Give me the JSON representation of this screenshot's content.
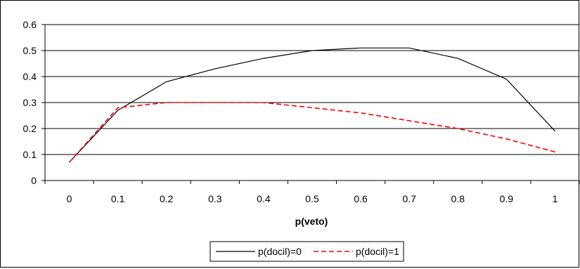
{
  "chart_data": {
    "type": "line",
    "title": "",
    "xlabel": "p(veto)",
    "ylabel": "",
    "x": [
      0,
      0.1,
      0.2,
      0.3,
      0.4,
      0.5,
      0.6,
      0.7,
      0.8,
      0.9,
      1
    ],
    "x_tick_labels": [
      "0",
      "0.1",
      "0.2",
      "0.3",
      "0.4",
      "0.5",
      "0.6",
      "0.7",
      "0.8",
      "0.9",
      "1"
    ],
    "y_tick_labels": [
      "0",
      "0.1",
      "0.2",
      "0.3",
      "0.4",
      "0.5",
      "0.6"
    ],
    "ylim": [
      0,
      0.6
    ],
    "grid": "horizontal",
    "legend_position": "bottom",
    "series": [
      {
        "name": "p(docil)=0",
        "color": "#000000",
        "dash": "solid",
        "values": [
          0.07,
          0.27,
          0.38,
          0.43,
          0.47,
          0.5,
          0.51,
          0.51,
          0.47,
          0.39,
          0.19
        ]
      },
      {
        "name": "p(docil)=1",
        "color": "#ff0000",
        "dash": "dashed",
        "values": [
          0.07,
          0.28,
          0.3,
          0.3,
          0.3,
          0.28,
          0.26,
          0.23,
          0.2,
          0.16,
          0.11
        ]
      }
    ]
  }
}
